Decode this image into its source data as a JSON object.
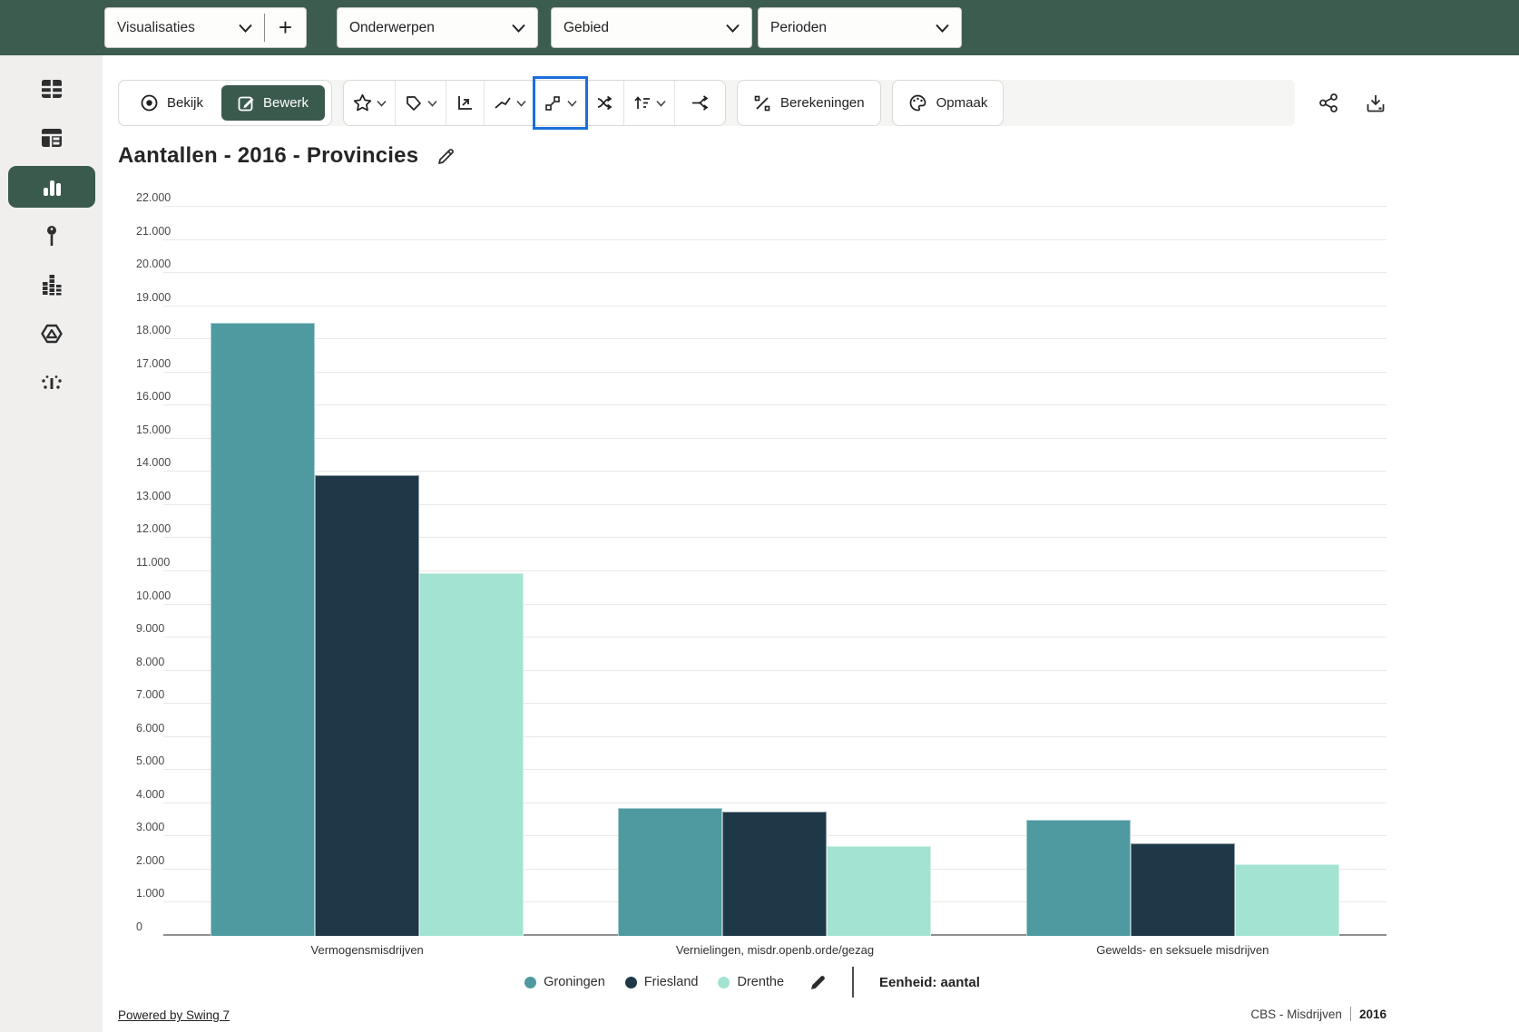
{
  "header": {
    "dropdowns": [
      {
        "label": "Visualisaties"
      },
      {
        "label": "Onderwerpen"
      },
      {
        "label": "Gebied"
      },
      {
        "label": "Perioden"
      }
    ],
    "add_button": "+"
  },
  "sidebar": {
    "items": [
      {
        "name": "table",
        "active": false
      },
      {
        "name": "pivot-table",
        "active": false
      },
      {
        "name": "bar-chart",
        "active": true
      },
      {
        "name": "map-pin",
        "active": false
      },
      {
        "name": "stacked-blocks",
        "active": false
      },
      {
        "name": "hexagon-shape",
        "active": false
      },
      {
        "name": "scatter-distribution",
        "active": false
      }
    ]
  },
  "toolbar": {
    "bekijk_label": "Bekijk",
    "bewerk_label": "Bewerk",
    "icon_buttons": [
      "star",
      "tag",
      "axes-corner",
      "trend-line",
      "scatter-highlighted",
      "shuffle",
      "sort",
      "branch"
    ],
    "highlighted_button": "scatter",
    "berekeningen_label": "Berekeningen",
    "opmaak_label": "Opmaak",
    "right_icons": [
      "share",
      "download"
    ]
  },
  "page": {
    "title": "Aantallen - 2016 - Provincies"
  },
  "chart_data": {
    "type": "bar",
    "title": "Aantallen - 2016 - Provincies",
    "categories": [
      "Vermogensmisdrijven",
      "Vernielingen, misdr.openb.orde/gezag",
      "Gewelds- en seksuele misdrijven"
    ],
    "series": [
      {
        "name": "Groningen",
        "color": "#4f9aa1",
        "values": [
          18500,
          3850,
          3500
        ]
      },
      {
        "name": "Friesland",
        "color": "#1e3848",
        "values": [
          13900,
          3750,
          2800
        ]
      },
      {
        "name": "Drenthe",
        "color": "#a3e3d1",
        "values": [
          10950,
          2700,
          2150
        ]
      }
    ],
    "xlabel": "",
    "ylabel": "",
    "ylim": [
      0,
      22000
    ],
    "ytick_step": 1000,
    "grid": true,
    "legend_position": "bottom",
    "unit_label": "Eenheid: aantal"
  },
  "footer": {
    "powered_by": "Powered by Swing 7",
    "source": "CBS - Misdrijven",
    "year": "2016"
  },
  "colors": {
    "header_green": "#3d5c50",
    "active_green": "#3a5a4e",
    "highlight_blue": "#1b6fdb",
    "series": [
      "#4f9aa1",
      "#1e3848",
      "#a3e3d1"
    ]
  }
}
